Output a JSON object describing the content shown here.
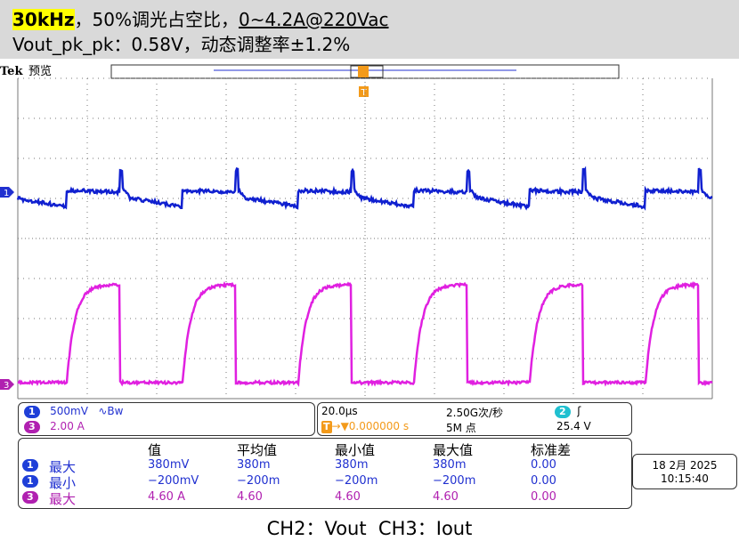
{
  "header": {
    "title_freq": "30kHz",
    "title_mid": "，50%调光占空比，",
    "title_range": "0~4.2A@220Vac",
    "subtitle": "Vout_pk_pk：0.58V，动态调整率±1.2%"
  },
  "scope": {
    "brand": "Tek",
    "mode": "预览",
    "trigger_marker": "T",
    "ch1_marker": "1",
    "ch3_marker": "3"
  },
  "settings": {
    "ch1_id": "1",
    "ch1_scale": "500mV",
    "ch1_bw": "∿Bw",
    "ch3_id": "3",
    "ch3_scale": "2.00 A",
    "timebase": "20.0μs",
    "trigger_icon": "T",
    "trigger_pos": "→▼0.000000 s",
    "sample_rate": "2.50G次/秒",
    "record": "5M 点",
    "trig_ch": "2",
    "trig_slope": "ʃ",
    "trig_level": "25.4 V"
  },
  "measurements": {
    "headers": [
      "值",
      "平均值",
      "最小值",
      "最大值",
      "标准差"
    ],
    "rows": [
      {
        "ch": "1",
        "label": "最大",
        "cells": [
          "380mV",
          "380m",
          "380m",
          "380m",
          "0.00"
        ]
      },
      {
        "ch": "1",
        "label": "最小",
        "cells": [
          "−200mV",
          "−200m",
          "−200m",
          "−200m",
          "0.00"
        ]
      },
      {
        "ch": "3",
        "label": "最大",
        "cells": [
          "4.60 A",
          "4.60",
          "4.60",
          "4.60",
          "0.00"
        ]
      }
    ]
  },
  "datetime": {
    "date": "18 2月 2025",
    "time": "10:15:40"
  },
  "caption": "CH2：Vout  CH3：Iout"
}
